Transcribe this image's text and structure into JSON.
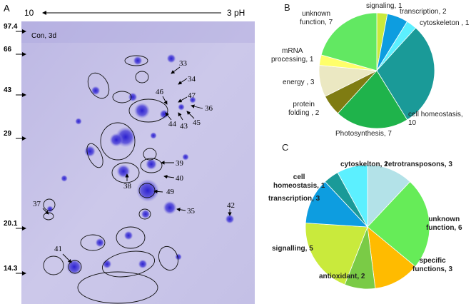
{
  "gel": {
    "panel": "A",
    "ph_left": "10",
    "ph_right": "3 pH",
    "condition": "Con, 3d",
    "mw_markers": [
      "97.4",
      "66",
      "43",
      "29",
      "20.1",
      "14.3"
    ],
    "spots": [
      "33",
      "34",
      "46",
      "47",
      "36",
      "44",
      "43",
      "45",
      "39",
      "40",
      "38",
      "49",
      "35",
      "42",
      "37",
      "41"
    ]
  },
  "chart_data": [
    {
      "type": "pie",
      "panel": "B",
      "value_labels": [
        "signaling, 1",
        "transcription, 2",
        "cytoskeleton , 1",
        "cell homeostasis, 10",
        "Photosynthesis, 7",
        "protein\nfolding , 2",
        "energy , 3",
        "mRNA\nprocessing, 1",
        "unknown\nfunction, 7"
      ],
      "values": [
        1,
        2,
        1,
        10,
        7,
        2,
        3,
        1,
        7
      ],
      "colors": [
        "#c9ea3c",
        "#0d9de0",
        "#5cf0ff",
        "#1a9a98",
        "#1fb34b",
        "#7f7c12",
        "#ebe8c2",
        "#ffff6a",
        "#62e862"
      ]
    },
    {
      "type": "pie",
      "panel": "C",
      "value_labels": [
        "retrotransposons, 3",
        "unknown\nfunction, 6",
        "specific\nfunctions, 3",
        "antioxidant, 2",
        "signalling, 5",
        "transcription, 3",
        "cell\nhomeostasis, 1",
        "cytoskelton, 2"
      ],
      "values": [
        3,
        6,
        3,
        2,
        5,
        3,
        1,
        2
      ],
      "colors": [
        "#b3e2e8",
        "#66ec58",
        "#ffbb00",
        "#7acb46",
        "#c9ea3c",
        "#0d9de0",
        "#1a9a98",
        "#5cf0ff"
      ]
    }
  ]
}
